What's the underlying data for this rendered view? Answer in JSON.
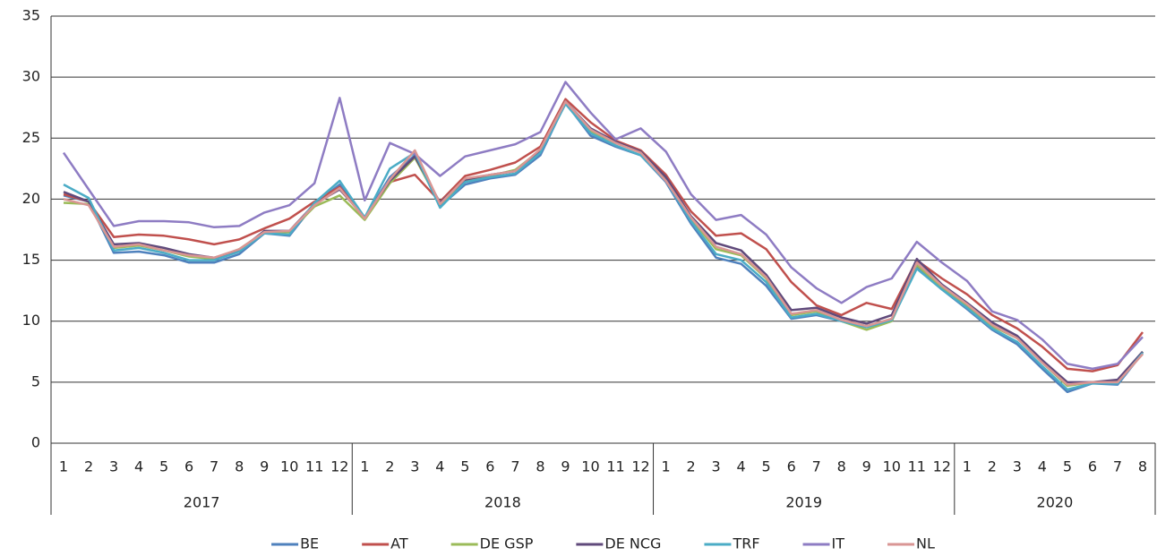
{
  "chart_data": {
    "type": "line",
    "categories": [
      "1",
      "2",
      "3",
      "4",
      "5",
      "6",
      "7",
      "8",
      "9",
      "10",
      "11",
      "12",
      "1",
      "2",
      "3",
      "4",
      "5",
      "6",
      "7",
      "8",
      "9",
      "10",
      "11",
      "12",
      "1",
      "2",
      "3",
      "4",
      "5",
      "6",
      "7",
      "8",
      "9",
      "10",
      "11",
      "12",
      "1",
      "2",
      "3",
      "4",
      "5",
      "6",
      "7",
      "8"
    ],
    "groups": [
      "2017",
      "2018",
      "2019",
      "2020"
    ],
    "ylim": [
      0,
      35
    ],
    "yticks": [
      0,
      5,
      10,
      15,
      20,
      25,
      30,
      35
    ],
    "grid": true,
    "legend": "bottom",
    "series": [
      {
        "name": "BE",
        "color": "#4f81bd",
        "values": [
          20.3,
          19.8,
          15.6,
          15.7,
          15.4,
          14.8,
          14.8,
          15.5,
          17.2,
          17.0,
          19.6,
          21.2,
          18.5,
          21.8,
          23.6,
          19.4,
          21.2,
          21.7,
          22.0,
          23.6,
          27.9,
          25.2,
          24.3,
          23.6,
          21.4,
          18.0,
          15.2,
          14.7,
          12.9,
          10.2,
          10.5,
          10.0,
          9.6,
          10.1,
          14.4,
          12.6,
          11.0,
          9.3,
          8.1,
          6.1,
          4.2,
          4.9,
          4.8,
          7.4
        ]
      },
      {
        "name": "AT",
        "color": "#c0504d",
        "values": [
          20.4,
          19.8,
          16.9,
          17.1,
          17.0,
          16.7,
          16.3,
          16.7,
          17.6,
          18.4,
          19.8,
          21.0,
          18.4,
          21.4,
          22.0,
          19.8,
          21.9,
          22.4,
          23.0,
          24.3,
          28.2,
          26.3,
          24.8,
          24.0,
          22.0,
          19.0,
          17.0,
          17.2,
          15.9,
          13.2,
          11.3,
          10.5,
          11.5,
          11.0,
          15.0,
          13.5,
          12.2,
          10.5,
          9.4,
          7.9,
          6.1,
          5.9,
          6.4,
          9.1
        ]
      },
      {
        "name": "DE GSP",
        "color": "#9bbb59",
        "values": [
          19.7,
          19.6,
          16.0,
          16.2,
          15.8,
          15.3,
          15.1,
          15.9,
          17.3,
          17.3,
          19.4,
          20.3,
          18.3,
          21.3,
          23.4,
          19.6,
          21.5,
          21.9,
          22.4,
          24.0,
          27.9,
          25.6,
          24.6,
          23.9,
          21.6,
          18.4,
          15.9,
          15.4,
          13.5,
          10.5,
          10.8,
          10.0,
          9.3,
          10.0,
          14.6,
          12.8,
          11.3,
          9.6,
          8.6,
          6.6,
          4.7,
          5.0,
          5.1,
          7.5
        ]
      },
      {
        "name": "DE NCG",
        "color": "#604a7b",
        "values": [
          20.6,
          19.8,
          16.3,
          16.4,
          16.0,
          15.5,
          15.2,
          15.8,
          17.4,
          17.4,
          19.6,
          20.8,
          18.5,
          21.5,
          23.5,
          19.7,
          21.6,
          22.0,
          22.3,
          24.0,
          28.0,
          25.8,
          24.7,
          23.9,
          21.8,
          18.6,
          16.4,
          15.8,
          13.8,
          10.9,
          11.1,
          10.3,
          9.8,
          10.5,
          15.1,
          13.0,
          11.5,
          9.9,
          8.8,
          6.8,
          5.0,
          5.0,
          5.2,
          7.5
        ]
      },
      {
        "name": "TRF",
        "color": "#4bacc6",
        "values": [
          21.2,
          20.1,
          15.8,
          16.0,
          15.6,
          15.0,
          15.0,
          15.7,
          17.2,
          17.1,
          19.7,
          21.5,
          18.5,
          22.5,
          23.8,
          19.3,
          21.4,
          21.8,
          22.1,
          23.8,
          27.8,
          25.4,
          24.4,
          23.6,
          21.5,
          18.2,
          15.5,
          15.0,
          13.2,
          10.3,
          10.6,
          10.0,
          9.5,
          10.1,
          14.3,
          12.6,
          11.1,
          9.4,
          8.3,
          6.3,
          4.4,
          4.9,
          4.9,
          7.4
        ]
      },
      {
        "name": "IT",
        "color": "#8e7cc3",
        "values": [
          23.8,
          20.8,
          17.8,
          18.2,
          18.2,
          18.1,
          17.7,
          17.8,
          18.9,
          19.5,
          21.3,
          28.3,
          19.9,
          24.6,
          23.7,
          21.9,
          23.5,
          24.0,
          24.5,
          25.5,
          29.6,
          27.1,
          24.9,
          25.8,
          23.9,
          20.4,
          18.3,
          18.7,
          17.1,
          14.4,
          12.7,
          11.5,
          12.8,
          13.5,
          16.5,
          14.8,
          13.3,
          10.8,
          10.1,
          8.5,
          6.5,
          6.1,
          6.5,
          8.7
        ]
      },
      {
        "name": "NL",
        "color": "#d99694",
        "values": [
          20.0,
          19.5,
          16.1,
          16.3,
          15.8,
          15.4,
          15.2,
          15.9,
          17.3,
          17.4,
          19.5,
          20.9,
          18.4,
          21.6,
          24.0,
          19.6,
          21.7,
          22.0,
          22.3,
          24.1,
          28.0,
          25.7,
          24.6,
          23.8,
          21.5,
          18.5,
          16.1,
          15.5,
          13.6,
          10.6,
          10.9,
          10.1,
          9.6,
          10.2,
          14.8,
          12.9,
          11.4,
          9.7,
          8.6,
          6.6,
          4.8,
          5.0,
          5.0,
          7.3
        ]
      }
    ]
  }
}
